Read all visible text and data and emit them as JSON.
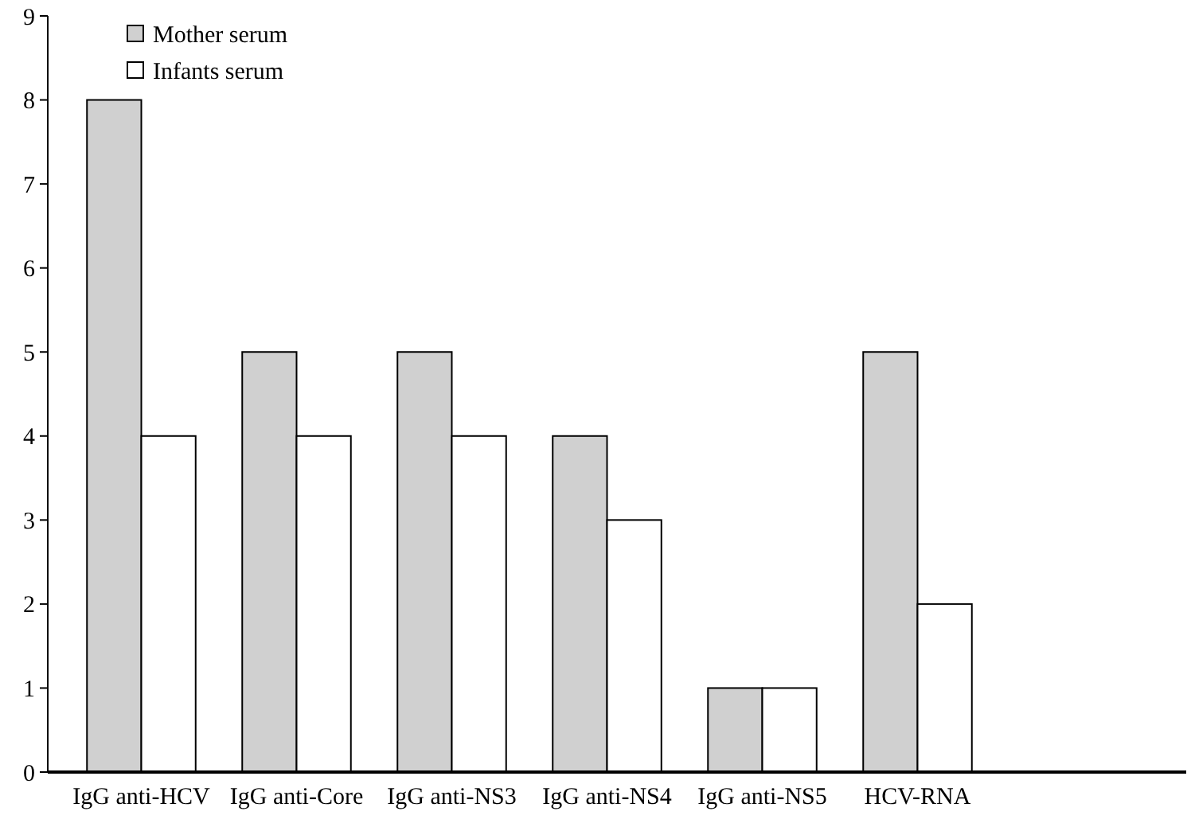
{
  "chart_data": {
    "type": "bar",
    "categories": [
      "IgG anti-HCV",
      "IgG anti-Core",
      "IgG anti-NS3",
      "IgG anti-NS4",
      "IgG anti-NS5",
      "HCV-RNA"
    ],
    "series": [
      {
        "name": "Mother serum",
        "color": "#d0d0d0",
        "values": [
          8,
          5,
          5,
          4,
          1,
          5
        ]
      },
      {
        "name": "Infants serum",
        "color": "#ffffff",
        "values": [
          4,
          4,
          4,
          3,
          1,
          2
        ]
      }
    ],
    "ylim": [
      0,
      9
    ],
    "yticks": [
      0,
      1,
      2,
      3,
      4,
      5,
      6,
      7,
      8,
      9
    ],
    "grid": false,
    "legend": "top left"
  }
}
